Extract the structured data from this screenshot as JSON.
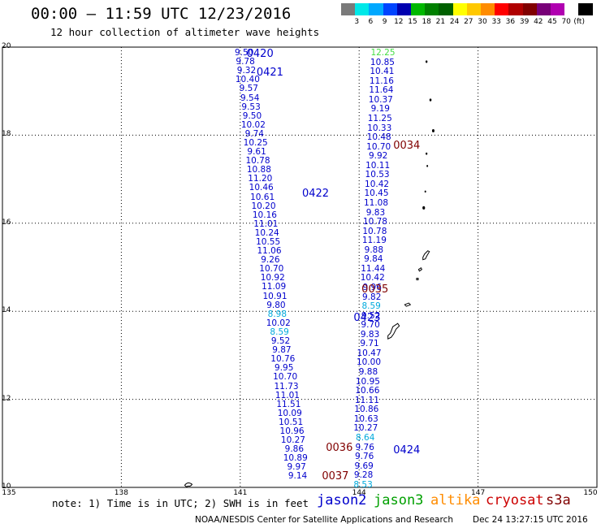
{
  "title": "00:00 — 11:59 UTC 12/23/2016",
  "subtitle": "12 hour collection of altimeter wave heights",
  "color_scale": {
    "colors": [
      "#7a7a7a",
      "#00e8e8",
      "#00a8ff",
      "#0044ff",
      "#0000b0",
      "#00b800",
      "#008000",
      "#006000",
      "#ffff00",
      "#ffc800",
      "#ff8c00",
      "#ff0000",
      "#b00000",
      "#800000",
      "#780078",
      "#b000b0",
      "#ffffff",
      "#000000"
    ],
    "labels": [
      "3",
      "6",
      "9",
      "12",
      "15",
      "18",
      "21",
      "24",
      "27",
      "30",
      "33",
      "36",
      "39",
      "42",
      "45",
      "70"
    ],
    "unit": "(ft)"
  },
  "axes": {
    "lat_labels": [
      "20",
      "18",
      "16",
      "14",
      "12",
      "10"
    ],
    "lon_labels": [
      "135",
      "138",
      "141",
      "144",
      "147",
      "150"
    ]
  },
  "passes": [
    {
      "id": "0420",
      "color": "#0000cc",
      "lon": 141.5,
      "lat": 19.85
    },
    {
      "id": "0421",
      "color": "#0000cc",
      "lon": 141.75,
      "lat": 19.43
    },
    {
      "id": "0422",
      "color": "#0000cc",
      "lon": 142.9,
      "lat": 16.67
    },
    {
      "id": "0423",
      "color": "#0000cc",
      "lon": 144.2,
      "lat": 13.85
    },
    {
      "id": "0424",
      "color": "#0000cc",
      "lon": 145.2,
      "lat": 10.85
    },
    {
      "id": "0034",
      "color": "#800000",
      "lon": 145.2,
      "lat": 17.77
    },
    {
      "id": "0035",
      "color": "#800000",
      "lon": 144.4,
      "lat": 14.5
    },
    {
      "id": "0036",
      "color": "#800000",
      "lon": 143.5,
      "lat": 10.9
    },
    {
      "id": "0037",
      "color": "#800000",
      "lon": 143.4,
      "lat": 10.25
    }
  ],
  "tracks": {
    "descending": {
      "color": "#0000cc",
      "start": [
        141.1,
        19.87
      ],
      "end": [
        142.45,
        10.25
      ],
      "values": [
        "9.50",
        "9.78",
        "9.32",
        "10.40",
        "9.57",
        "9.54",
        "9.53",
        "9.50",
        "10.02",
        "9.74",
        "10.25",
        "9.61",
        "10.78",
        "10.88",
        "11.20",
        "10.46",
        "10.61",
        "10.20",
        "10.16",
        "11.01",
        "10.24",
        "10.55",
        "11.06",
        "9.26",
        "10.70",
        "10.92",
        "11.09",
        "10.91",
        "9.80",
        "8.98",
        "10.02",
        "8.59",
        "9.52",
        "9.87",
        "10.76",
        "9.95",
        "10.70",
        "11.73",
        "11.01",
        "11.51",
        "10.09",
        "10.51",
        "10.96",
        "10.27",
        "9.86",
        "10.89",
        "9.97",
        "9.14"
      ]
    },
    "ascending": {
      "color": "#0000cc",
      "start": [
        144.6,
        19.87
      ],
      "end": [
        144.1,
        10.06
      ],
      "values": [
        "12.25",
        "10.85",
        "10.41",
        "11.16",
        "11.64",
        "10.37",
        "9.19",
        "11.25",
        "10.33",
        "10.48",
        "10.70",
        "9.92",
        "10.11",
        "10.53",
        "10.42",
        "10.45",
        "11.08",
        "9.83",
        "10.78",
        "10.78",
        "11.19",
        "9.88",
        "9.84",
        "11.44",
        "10.42",
        "9.96",
        "9.82",
        "8.59",
        "9.52",
        "9.70",
        "9.83",
        "9.71",
        "10.47",
        "10.00",
        "9.88",
        "10.95",
        "10.66",
        "11.11",
        "10.86",
        "10.63",
        "10.27",
        "8.64",
        "9.76",
        "9.76",
        "9.69",
        "9.28",
        "8.53"
      ]
    }
  },
  "note": "note: 1) Time is in UTC; 2) SWH is in feet",
  "satellites": [
    {
      "name": "jason2",
      "color": "#0000cc"
    },
    {
      "name": "jason3",
      "color": "#00a000"
    },
    {
      "name": "altika",
      "color": "#ff8c00"
    },
    {
      "name": "cryosat",
      "color": "#cc0000"
    },
    {
      "name": "s3a",
      "color": "#800000"
    }
  ],
  "credit": "NOAA/NESDIS Center for Satellite Applications and Research",
  "timestamp": "Dec 24 13:27:15 UTC 2016"
}
